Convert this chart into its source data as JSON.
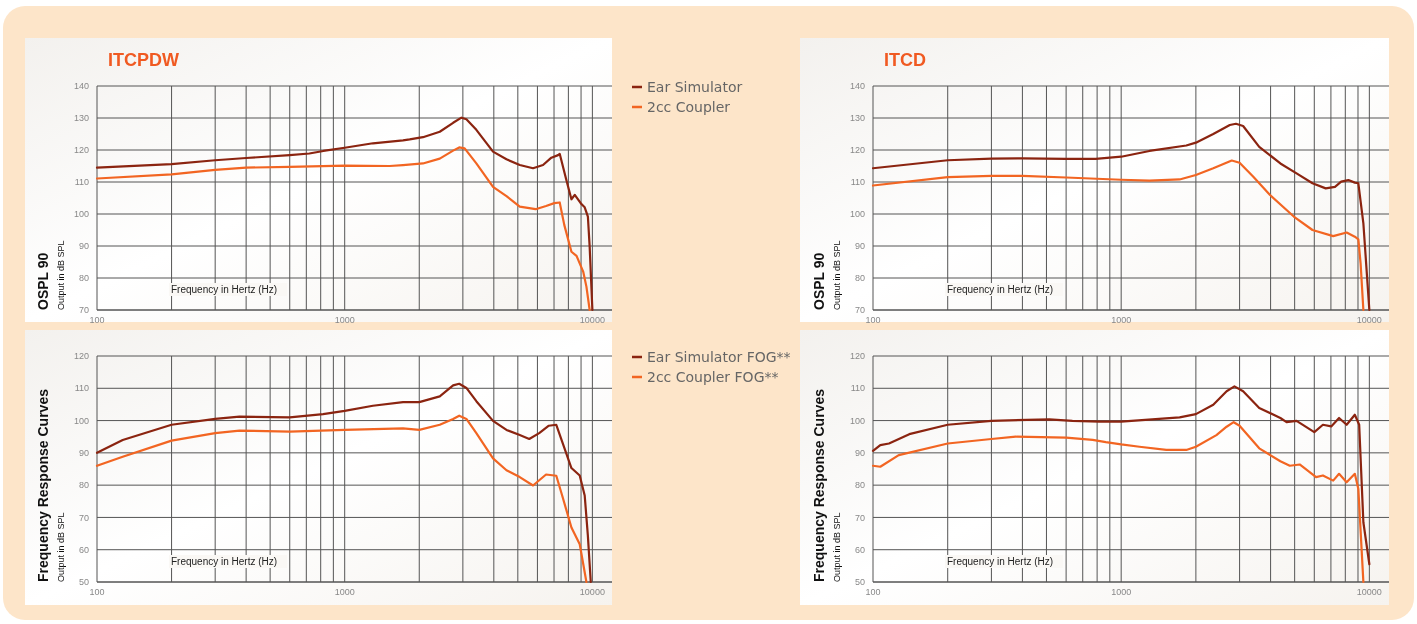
{
  "chart_data": [
    {
      "type": "line",
      "title": "ITCPDW",
      "xlabel": "Frequency in Hertz (Hz)",
      "ylabel": "OSPL 90\nOutput in dB SPL",
      "log": "x",
      "grid": true,
      "legend": "right",
      "xlim": [
        100,
        12000
      ],
      "ylim": [
        70,
        140
      ],
      "xticks": [
        100,
        {
          "value": 200,
          "label": null
        },
        {
          "value": 300,
          "label": null
        },
        {
          "value": 400,
          "label": null
        },
        {
          "value": 500,
          "label": null
        },
        {
          "value": 600,
          "label": null
        },
        {
          "value": 700,
          "label": null
        },
        {
          "value": 800,
          "label": null
        },
        {
          "value": 900,
          "label": null
        },
        1000,
        {
          "value": 2000,
          "label": null
        },
        {
          "value": 3000,
          "label": null
        },
        {
          "value": 4000,
          "label": null
        },
        {
          "value": 5000,
          "label": null
        },
        {
          "value": 6000,
          "label": null
        },
        {
          "value": 7000,
          "label": null
        },
        {
          "value": 8000,
          "label": null
        },
        {
          "value": 9000,
          "label": null
        },
        10000
      ],
      "yticks": [
        70,
        80,
        90,
        100,
        110,
        120,
        130,
        140
      ],
      "series": [
        {
          "name": "Ear Simulator",
          "color": "#8b2410",
          "x": [
            100,
            200,
            300,
            400,
            600,
            720,
            820,
            1000,
            1300,
            1720,
            1830,
            2070,
            2420,
            2740,
            2960,
            3100,
            3400,
            3970,
            4500,
            5090,
            5760,
            6320,
            6830,
            7270,
            7380,
            7850,
            8230,
            8490,
            9030,
            9310,
            9590,
            9750,
            10000
          ],
          "values": [
            114.5,
            115.6,
            116.8,
            117.5,
            118.4,
            118.9,
            119.7,
            120.7,
            122.1,
            123,
            123.3,
            124,
            125.7,
            128.5,
            130.1,
            129.6,
            126.3,
            119.5,
            117.1,
            115.3,
            114.3,
            115.3,
            117.6,
            118.4,
            118.8,
            110.6,
            104.6,
            106,
            103.1,
            102.1,
            99.2,
            89.8,
            70
          ]
        },
        {
          "name": "2cc Coupler",
          "color": "#f26522",
          "x": [
            100,
            200,
            300,
            400,
            600,
            1000,
            1520,
            1720,
            2070,
            2420,
            2740,
            2900,
            3050,
            3400,
            3970,
            4500,
            5090,
            5900,
            6500,
            7020,
            7380,
            7700,
            8230,
            8630,
            9180,
            9460,
            9750
          ],
          "values": [
            111.1,
            112.4,
            113.8,
            114.5,
            114.7,
            115.1,
            115,
            115.3,
            115.8,
            117.3,
            119.8,
            120.8,
            120.5,
            115.8,
            108.5,
            105.6,
            102.3,
            101.5,
            102.5,
            103.4,
            103.6,
            96.6,
            88.2,
            86.9,
            82,
            77.3,
            70
          ]
        }
      ]
    },
    {
      "type": "line",
      "title": "ITCD",
      "xlabel": "Frequency in Hertz (Hz)",
      "ylabel": "OSPL 90\nOutput in dB SPL",
      "log": "x",
      "grid": true,
      "xlim": [
        100,
        12000
      ],
      "ylim": [
        70,
        140
      ],
      "xticks": [
        100,
        {
          "value": 200,
          "label": null
        },
        {
          "value": 300,
          "label": null
        },
        {
          "value": 400,
          "label": null
        },
        {
          "value": 500,
          "label": null
        },
        {
          "value": 600,
          "label": null
        },
        {
          "value": 700,
          "label": null
        },
        {
          "value": 800,
          "label": null
        },
        {
          "value": 900,
          "label": null
        },
        1000,
        {
          "value": 2000,
          "label": null
        },
        {
          "value": 3000,
          "label": null
        },
        {
          "value": 4000,
          "label": null
        },
        {
          "value": 5000,
          "label": null
        },
        {
          "value": 6000,
          "label": null
        },
        {
          "value": 7000,
          "label": null
        },
        {
          "value": 8000,
          "label": null
        },
        {
          "value": 9000,
          "label": null
        },
        10000
      ],
      "yticks": [
        70,
        80,
        90,
        100,
        110,
        120,
        130,
        140
      ],
      "series": [
        {
          "color": "#8b2410",
          "x": [
            100,
            200,
            300,
            400,
            600,
            790,
            1000,
            1300,
            1830,
            2000,
            2350,
            2740,
            2900,
            3100,
            3600,
            4380,
            5090,
            5900,
            6670,
            7270,
            7700,
            8230,
            8740,
            9030,
            9460,
            10000
          ],
          "values": [
            114.3,
            116.8,
            117.3,
            117.4,
            117.2,
            117.2,
            117.9,
            119.7,
            121.4,
            122.3,
            125,
            127.8,
            128.2,
            127.5,
            121,
            115.8,
            112.7,
            109.6,
            108,
            108.5,
            110.1,
            110.6,
            109.8,
            109.6,
            97.1,
            70
          ]
        },
        {
          "color": "#f26522",
          "x": [
            100,
            200,
            300,
            400,
            600,
            1000,
            1300,
            1720,
            2000,
            2350,
            2790,
            3000,
            3400,
            3970,
            4960,
            5900,
            7150,
            8100,
            8740,
            9030,
            9220,
            9460
          ],
          "values": [
            108.9,
            111.5,
            111.9,
            111.9,
            111.4,
            110.7,
            110.4,
            110.8,
            112.2,
            114.3,
            116.7,
            116,
            111.7,
            106,
            99.2,
            95,
            93.1,
            94.2,
            92.9,
            92.1,
            84.6,
            70
          ]
        }
      ]
    },
    {
      "type": "line",
      "xlabel": "Frequency in Hertz (Hz)",
      "ylabel": "Frequency Response Curves\nOutput in dB SPL",
      "log": "x",
      "grid": true,
      "legend": "right",
      "xlim": [
        100,
        12000
      ],
      "ylim": [
        50,
        120
      ],
      "xticks": [
        100,
        {
          "value": 200,
          "label": null
        },
        {
          "value": 300,
          "label": null
        },
        {
          "value": 400,
          "label": null
        },
        {
          "value": 500,
          "label": null
        },
        {
          "value": 600,
          "label": null
        },
        {
          "value": 700,
          "label": null
        },
        {
          "value": 800,
          "label": null
        },
        {
          "value": 900,
          "label": null
        },
        1000,
        {
          "value": 2000,
          "label": null
        },
        {
          "value": 3000,
          "label": null
        },
        {
          "value": 4000,
          "label": null
        },
        {
          "value": 5000,
          "label": null
        },
        {
          "value": 6000,
          "label": null
        },
        {
          "value": 7000,
          "label": null
        },
        {
          "value": 8000,
          "label": null
        },
        {
          "value": 9000,
          "label": null
        },
        10000
      ],
      "yticks": [
        50,
        60,
        70,
        80,
        90,
        100,
        110,
        120
      ],
      "series": [
        {
          "name": "Ear Simulator FOG**",
          "color": "#8b2410",
          "x": [
            100,
            127,
            200,
            300,
            376,
            600,
            818,
            1000,
            1300,
            1720,
            2000,
            2420,
            2740,
            2900,
            3100,
            3400,
            3970,
            4500,
            5090,
            5560,
            6100,
            6670,
            7150,
            7550,
            8230,
            8890,
            9310,
            9590,
            9850
          ],
          "values": [
            90,
            94,
            98.7,
            100.5,
            101.2,
            101,
            102,
            103,
            104.6,
            105.7,
            105.7,
            107.5,
            110.9,
            111.4,
            110.1,
            106,
            99.9,
            97.1,
            95.5,
            94.3,
            96.1,
            98.4,
            98.7,
            93.5,
            85.3,
            83,
            76.8,
            64.3,
            50
          ]
        },
        {
          "name": "2cc Coupler FOG**",
          "color": "#f26522",
          "x": [
            100,
            127,
            200,
            300,
            376,
            600,
            1000,
            1720,
            2000,
            2420,
            2740,
            2900,
            3100,
            3400,
            3970,
            4500,
            5090,
            5760,
            6500,
            7150,
            7550,
            8230,
            8890,
            9460
          ],
          "values": [
            86,
            88.8,
            93.8,
            96.1,
            96.9,
            96.6,
            97.1,
            97.6,
            97.1,
            98.7,
            100.5,
            101.5,
            100.5,
            96.1,
            88.3,
            84.6,
            82.5,
            79.9,
            83.3,
            82.9,
            76.8,
            66.9,
            61.7,
            50
          ]
        }
      ]
    },
    {
      "type": "line",
      "xlabel": "Frequency in Hertz (Hz)",
      "ylabel": "Frequency Response Curves\nOutput in dB SPL",
      "log": "x",
      "grid": true,
      "xlim": [
        100,
        12000
      ],
      "ylim": [
        50,
        120
      ],
      "xticks": [
        100,
        {
          "value": 200,
          "label": null
        },
        {
          "value": 300,
          "label": null
        },
        {
          "value": 400,
          "label": null
        },
        {
          "value": 500,
          "label": null
        },
        {
          "value": 600,
          "label": null
        },
        {
          "value": 700,
          "label": null
        },
        {
          "value": 800,
          "label": null
        },
        {
          "value": 900,
          "label": null
        },
        1000,
        {
          "value": 2000,
          "label": null
        },
        {
          "value": 3000,
          "label": null
        },
        {
          "value": 4000,
          "label": null
        },
        {
          "value": 5000,
          "label": null
        },
        {
          "value": 6000,
          "label": null
        },
        {
          "value": 7000,
          "label": null
        },
        {
          "value": 8000,
          "label": null
        },
        {
          "value": 9000,
          "label": null
        },
        10000
      ],
      "yticks": [
        50,
        60,
        70,
        80,
        90,
        100,
        110,
        120
      ],
      "series": [
        {
          "color": "#8b2410",
          "x": [
            100,
            107,
            116,
            140,
            200,
            300,
            513,
            636,
            818,
            1000,
            1720,
            2000,
            2350,
            2660,
            2860,
            3100,
            3600,
            4380,
            4640,
            5090,
            6000,
            6500,
            7020,
            7550,
            8100,
            8740,
            9100,
            9460,
            10000
          ],
          "values": [
            90.6,
            92.4,
            92.9,
            95.8,
            98.7,
            99.9,
            100.4,
            99.9,
            99.7,
            99.7,
            101,
            102,
            104.9,
            109.1,
            110.6,
            109.1,
            103.9,
            100.8,
            99.5,
            99.9,
            96.4,
            98.7,
            98.2,
            100.8,
            98.7,
            101.8,
            98.7,
            68.5,
            55.5
          ]
        },
        {
          "color": "#f26522",
          "x": [
            100,
            107,
            127,
            200,
            300,
            376,
            600,
            768,
            867,
            1000,
            1185,
            1520,
            1830,
            2000,
            2420,
            2660,
            2840,
            3000,
            3600,
            4380,
            4780,
            5240,
            6100,
            6500,
            7150,
            7550,
            8100,
            8740,
            9030,
            9460
          ],
          "values": [
            86,
            85.7,
            89.3,
            92.9,
            94.3,
            95,
            94.7,
            94,
            93.3,
            92.6,
            91.9,
            90.9,
            90.9,
            91.9,
            95.5,
            98.1,
            99.5,
            98.4,
            91.4,
            87.4,
            86,
            86.4,
            82.5,
            83,
            81.4,
            83.5,
            80.9,
            83.5,
            78.8,
            50
          ]
        }
      ]
    }
  ]
}
